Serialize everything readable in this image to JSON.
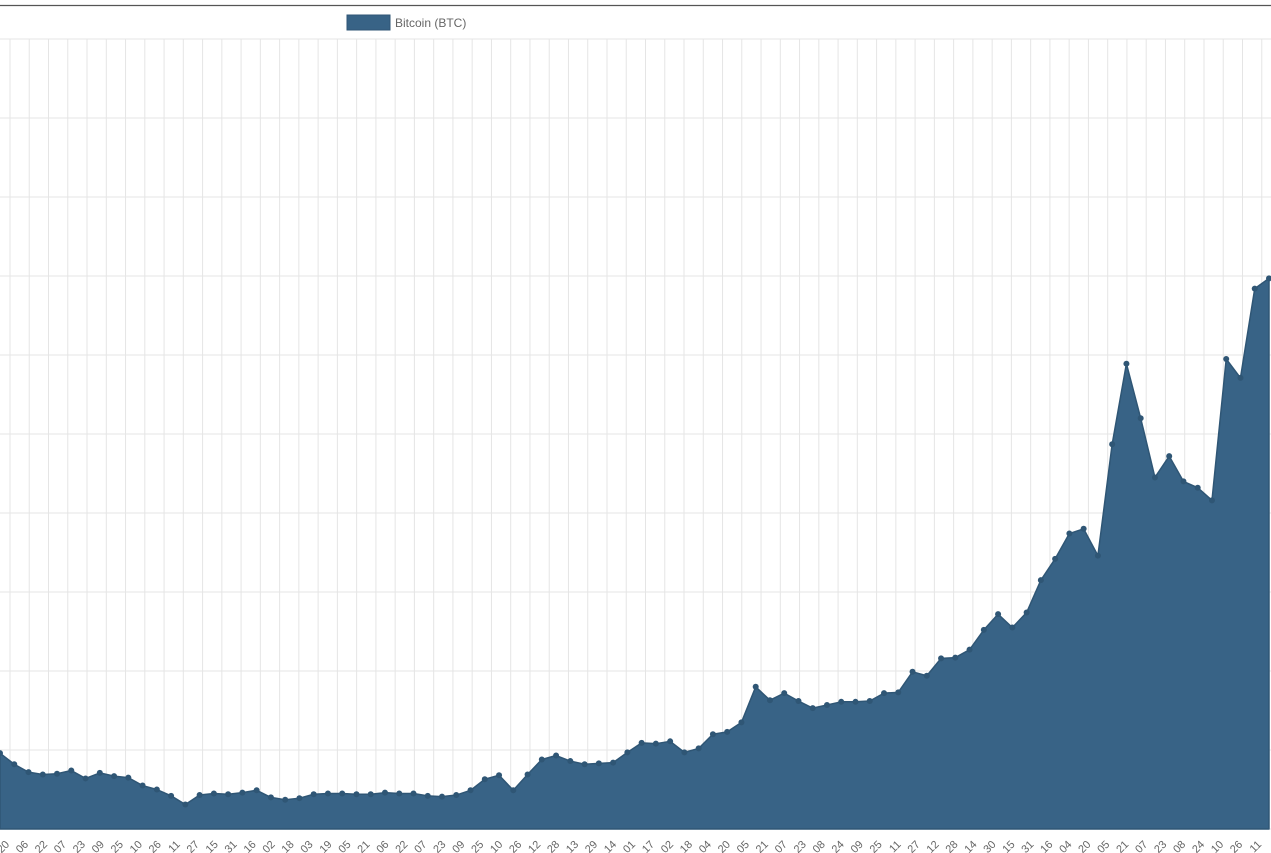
{
  "colors": {
    "series_fill": "#386386",
    "series_point": "#2f5675",
    "grid": "#e5e5e5",
    "frame": "#555555",
    "tick_text": "#666666"
  },
  "chart_data": {
    "type": "area",
    "title": "",
    "xlabel": "",
    "ylabel": "",
    "grid": true,
    "legend_position": "top",
    "y_range": [
      0,
      100
    ],
    "x_tick_labels": [
      "20",
      "06",
      "22",
      "07",
      "23",
      "09",
      "25",
      "10",
      "26",
      "11",
      "27",
      "15",
      "31",
      "16",
      "02",
      "18",
      "03",
      "19",
      "05",
      "21",
      "06",
      "22",
      "07",
      "23",
      "09",
      "25",
      "10",
      "26",
      "12",
      "28",
      "13",
      "29",
      "14",
      "01",
      "17",
      "02",
      "18",
      "04",
      "20",
      "05",
      "21",
      "07",
      "23",
      "08",
      "24",
      "09",
      "25",
      "11",
      "27",
      "12",
      "28",
      "14",
      "30",
      "15",
      "31",
      "16",
      "04",
      "20",
      "05",
      "21",
      "07",
      "23",
      "08",
      "24",
      "10",
      "26",
      "11"
    ],
    "series": [
      {
        "name": "Bitcoin (BTC)",
        "values": [
          9.6,
          8.2,
          7.2,
          6.9,
          7.0,
          7.4,
          6.4,
          7.1,
          6.7,
          6.5,
          5.5,
          5.0,
          4.2,
          3.1,
          4.3,
          4.5,
          4.4,
          4.6,
          4.9,
          4.0,
          3.7,
          3.9,
          4.4,
          4.5,
          4.5,
          4.4,
          4.4,
          4.6,
          4.5,
          4.5,
          4.2,
          4.1,
          4.3,
          4.9,
          6.3,
          6.8,
          4.9,
          6.9,
          8.8,
          9.3,
          8.6,
          8.2,
          8.3,
          8.4,
          9.7,
          10.9,
          10.8,
          11.1,
          9.7,
          10.2,
          12.0,
          12.3,
          13.5,
          18.0,
          16.3,
          17.2,
          16.2,
          15.3,
          15.7,
          16.1,
          16.1,
          16.2,
          17.2,
          17.3,
          19.9,
          19.4,
          21.6,
          21.7,
          22.7,
          25.2,
          27.2,
          25.5,
          27.4,
          31.5,
          34.2,
          37.4,
          38.0,
          34.6,
          48.7,
          58.9,
          52.0,
          44.5,
          47.2,
          44.0,
          43.2,
          41.6,
          59.5,
          57.1,
          68.4,
          69.7
        ]
      }
    ]
  }
}
